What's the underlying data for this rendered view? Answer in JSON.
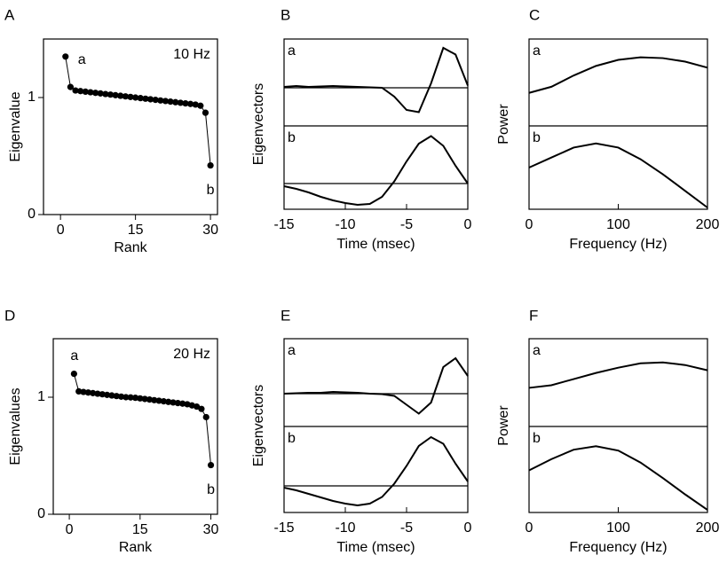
{
  "chart_data": [
    {
      "type": "scatter",
      "connected": true,
      "panel": "A",
      "xlabel": "Rank",
      "ylabel": "Eigenvalue",
      "annotations": {
        "first": "a",
        "last": "b",
        "condition": "10 Hz"
      },
      "x": [
        1,
        2,
        3,
        4,
        5,
        6,
        7,
        8,
        9,
        10,
        11,
        12,
        13,
        14,
        15,
        16,
        17,
        18,
        19,
        20,
        21,
        22,
        23,
        24,
        25,
        26,
        27,
        28,
        29,
        30
      ],
      "values": [
        1.35,
        1.09,
        1.06,
        1.055,
        1.05,
        1.045,
        1.04,
        1.035,
        1.03,
        1.025,
        1.02,
        1.015,
        1.01,
        1.005,
        1.0,
        0.995,
        0.99,
        0.985,
        0.98,
        0.975,
        0.97,
        0.965,
        0.96,
        0.955,
        0.95,
        0.945,
        0.94,
        0.93,
        0.87,
        0.42
      ],
      "xlim": [
        -3.4,
        31.4
      ],
      "ylim": [
        0,
        1.5
      ],
      "xticks": [
        0,
        15,
        30
      ],
      "yticks": [
        0,
        1
      ],
      "color": "#000000"
    },
    {
      "type": "line",
      "panel": "B",
      "xlabel": "Time (msec)",
      "ylabel": "Eigenvectors",
      "zero_line": true,
      "x": [
        -15,
        -14,
        -13,
        -12,
        -11,
        -10,
        -9,
        -8,
        -7,
        -6,
        -5,
        -4,
        -3,
        -2,
        -1,
        0
      ],
      "xlim": [
        -15,
        0
      ],
      "xticks": [
        -15,
        -10,
        -5,
        0
      ],
      "color": "#000000",
      "subplots": [
        {
          "name": "a",
          "ylim": [
            -0.86,
            1.1
          ],
          "values": [
            0.02,
            0.04,
            0.02,
            0.03,
            0.04,
            0.03,
            0.02,
            0.01,
            0.0,
            -0.2,
            -0.5,
            -0.55,
            0.1,
            0.9,
            0.75,
            0.05
          ]
        },
        {
          "name": "b",
          "ylim": [
            -0.58,
            1.3
          ],
          "values": [
            -0.06,
            -0.12,
            -0.2,
            -0.3,
            -0.38,
            -0.44,
            -0.48,
            -0.46,
            -0.3,
            0.05,
            0.5,
            0.9,
            1.07,
            0.85,
            0.4,
            0.0
          ]
        }
      ]
    },
    {
      "type": "line",
      "panel": "C",
      "xlabel": "Frequency (Hz)",
      "ylabel": "Power",
      "zero_line": false,
      "x": [
        0,
        25,
        50,
        75,
        100,
        125,
        150,
        175,
        200
      ],
      "xlim": [
        0,
        200
      ],
      "xticks": [
        0,
        100,
        200
      ],
      "color": "#000000",
      "subplots": [
        {
          "name": "a",
          "ylim": [
            0,
            1
          ],
          "values": [
            0.38,
            0.45,
            0.58,
            0.69,
            0.76,
            0.79,
            0.78,
            0.74,
            0.67
          ]
        },
        {
          "name": "b",
          "ylim": [
            0,
            1
          ],
          "values": [
            0.5,
            0.62,
            0.74,
            0.79,
            0.74,
            0.6,
            0.42,
            0.22,
            0.02
          ]
        }
      ]
    },
    {
      "type": "scatter",
      "connected": true,
      "panel": "D",
      "xlabel": "Rank",
      "ylabel": "Eigenvalues",
      "annotations": {
        "first": "a",
        "last": "b",
        "condition": "20 Hz"
      },
      "x": [
        1,
        2,
        3,
        4,
        5,
        6,
        7,
        8,
        9,
        10,
        11,
        12,
        13,
        14,
        15,
        16,
        17,
        18,
        19,
        20,
        21,
        22,
        23,
        24,
        25,
        26,
        27,
        28,
        29,
        30
      ],
      "values": [
        1.2,
        1.05,
        1.045,
        1.04,
        1.035,
        1.03,
        1.025,
        1.02,
        1.015,
        1.01,
        1.005,
        1.0,
        0.998,
        0.995,
        0.99,
        0.985,
        0.98,
        0.975,
        0.97,
        0.965,
        0.96,
        0.955,
        0.95,
        0.945,
        0.94,
        0.93,
        0.92,
        0.9,
        0.83,
        0.42
      ],
      "xlim": [
        -3.4,
        31.4
      ],
      "ylim": [
        0,
        1.5
      ],
      "xticks": [
        0,
        15,
        30
      ],
      "yticks": [
        0,
        1
      ],
      "color": "#000000"
    },
    {
      "type": "line",
      "panel": "E",
      "xlabel": "Time (msec)",
      "ylabel": "Eigenvectors",
      "zero_line": true,
      "x": [
        -15,
        -14,
        -13,
        -12,
        -11,
        -10,
        -9,
        -8,
        -7,
        -6,
        -5,
        -4,
        -3,
        -2,
        -1,
        0
      ],
      "xlim": [
        -15,
        0
      ],
      "xticks": [
        -15,
        -10,
        -5,
        0
      ],
      "color": "#000000",
      "subplots": [
        {
          "name": "a",
          "ylim": [
            -0.74,
            1.24
          ],
          "values": [
            0.0,
            0.01,
            0.02,
            0.02,
            0.04,
            0.03,
            0.02,
            0.0,
            -0.01,
            -0.05,
            -0.25,
            -0.45,
            -0.2,
            0.6,
            0.8,
            0.4
          ]
        },
        {
          "name": "b",
          "ylim": [
            -0.6,
            1.34
          ],
          "values": [
            -0.04,
            -0.1,
            -0.18,
            -0.26,
            -0.34,
            -0.4,
            -0.44,
            -0.4,
            -0.25,
            0.05,
            0.45,
            0.9,
            1.1,
            0.95,
            0.5,
            0.1
          ]
        }
      ]
    },
    {
      "type": "line",
      "panel": "F",
      "xlabel": "Frequency (Hz)",
      "ylabel": "Power",
      "zero_line": false,
      "x": [
        0,
        25,
        50,
        75,
        100,
        125,
        150,
        175,
        200
      ],
      "xlim": [
        0,
        200
      ],
      "xticks": [
        0,
        100,
        200
      ],
      "color": "#000000",
      "subplots": [
        {
          "name": "a",
          "ylim": [
            0,
            1
          ],
          "values": [
            0.44,
            0.47,
            0.54,
            0.61,
            0.67,
            0.72,
            0.73,
            0.7,
            0.64
          ]
        },
        {
          "name": "b",
          "ylim": [
            0,
            1
          ],
          "values": [
            0.49,
            0.62,
            0.73,
            0.77,
            0.72,
            0.58,
            0.4,
            0.21,
            0.03
          ]
        }
      ]
    }
  ]
}
